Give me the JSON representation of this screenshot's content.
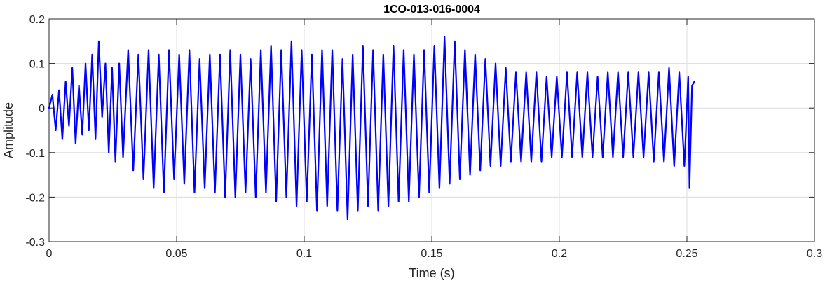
{
  "chart_data": {
    "type": "line",
    "title": "1CO-013-016-0004",
    "xlabel": "Time (s)",
    "ylabel": "Amplitude",
    "xlim": [
      0,
      0.3
    ],
    "ylim": [
      -0.3,
      0.2
    ],
    "xticks": [
      0,
      0.05,
      0.1,
      0.15,
      0.2,
      0.25,
      0.3
    ],
    "xtick_labels": [
      "0",
      "0.05",
      "0.1",
      "0.15",
      "0.2",
      "0.25",
      "0.3"
    ],
    "yticks": [
      -0.3,
      -0.2,
      -0.1,
      0,
      0.1,
      0.2
    ],
    "ytick_labels": [
      "-0.3",
      "-0.2",
      "-0.1",
      "0",
      "0.1",
      "0.2"
    ],
    "grid": true,
    "series_color": "#0000ff",
    "series": [
      {
        "name": "",
        "x": [
          0,
          0.0013,
          0.0026,
          0.0039,
          0.0052,
          0.0065,
          0.0078,
          0.0091,
          0.0104,
          0.0117,
          0.013,
          0.0143,
          0.0156,
          0.0169,
          0.0182,
          0.0195,
          0.0208,
          0.0221,
          0.0234,
          0.0247,
          0.026,
          0.0275,
          0.029,
          0.031,
          0.033,
          0.035,
          0.037,
          0.039,
          0.041,
          0.043,
          0.045,
          0.047,
          0.049,
          0.051,
          0.053,
          0.055,
          0.057,
          0.059,
          0.061,
          0.063,
          0.065,
          0.067,
          0.069,
          0.071,
          0.073,
          0.075,
          0.077,
          0.079,
          0.081,
          0.083,
          0.085,
          0.087,
          0.089,
          0.091,
          0.093,
          0.095,
          0.097,
          0.099,
          0.101,
          0.103,
          0.105,
          0.107,
          0.109,
          0.111,
          0.113,
          0.115,
          0.117,
          0.119,
          0.121,
          0.123,
          0.125,
          0.127,
          0.129,
          0.131,
          0.133,
          0.135,
          0.137,
          0.139,
          0.141,
          0.143,
          0.145,
          0.147,
          0.149,
          0.151,
          0.153,
          0.155,
          0.157,
          0.159,
          0.161,
          0.163,
          0.165,
          0.167,
          0.169,
          0.171,
          0.173,
          0.175,
          0.177,
          0.179,
          0.181,
          0.183,
          0.185,
          0.187,
          0.189,
          0.191,
          0.193,
          0.195,
          0.197,
          0.199,
          0.201,
          0.203,
          0.205,
          0.207,
          0.209,
          0.211,
          0.213,
          0.215,
          0.217,
          0.219,
          0.221,
          0.223,
          0.225,
          0.227,
          0.229,
          0.231,
          0.233,
          0.235,
          0.237,
          0.239,
          0.241,
          0.243,
          0.245,
          0.247,
          0.249,
          0.2505,
          0.251,
          0.252,
          0.253
        ],
        "y": [
          0,
          0.03,
          -0.05,
          0.04,
          -0.07,
          0.06,
          -0.04,
          0.09,
          -0.08,
          0.05,
          -0.06,
          0.1,
          -0.05,
          0.12,
          -0.07,
          0.15,
          -0.02,
          0.1,
          -0.1,
          0.09,
          -0.12,
          0.1,
          -0.11,
          0.13,
          -0.14,
          0.12,
          -0.16,
          0.13,
          -0.18,
          0.12,
          -0.19,
          0.13,
          -0.16,
          0.12,
          -0.17,
          0.13,
          -0.19,
          0.11,
          -0.18,
          0.12,
          -0.19,
          0.12,
          -0.2,
          0.13,
          -0.2,
          0.12,
          -0.19,
          0.11,
          -0.2,
          0.13,
          -0.19,
          0.14,
          -0.21,
          0.13,
          -0.2,
          0.15,
          -0.22,
          0.13,
          -0.21,
          0.12,
          -0.23,
          0.13,
          -0.22,
          0.13,
          -0.23,
          0.11,
          -0.25,
          0.12,
          -0.23,
          0.14,
          -0.22,
          0.13,
          -0.23,
          0.12,
          -0.22,
          0.14,
          -0.21,
          0.13,
          -0.21,
          0.12,
          -0.2,
          0.13,
          -0.19,
          0.14,
          -0.18,
          0.16,
          -0.17,
          0.15,
          -0.16,
          0.13,
          -0.15,
          0.12,
          -0.14,
          0.11,
          -0.13,
          0.1,
          -0.13,
          0.09,
          -0.12,
          0.08,
          -0.12,
          0.08,
          -0.12,
          0.08,
          -0.12,
          0.07,
          -0.11,
          0.07,
          -0.11,
          0.08,
          -0.11,
          0.08,
          -0.11,
          0.08,
          -0.11,
          0.07,
          -0.11,
          0.08,
          -0.11,
          0.08,
          -0.11,
          0.08,
          -0.11,
          0.08,
          -0.11,
          0.08,
          -0.12,
          0.08,
          -0.12,
          0.09,
          -0.13,
          0.08,
          -0.13,
          0.07,
          -0.18,
          0.05,
          0.06
        ]
      }
    ]
  }
}
